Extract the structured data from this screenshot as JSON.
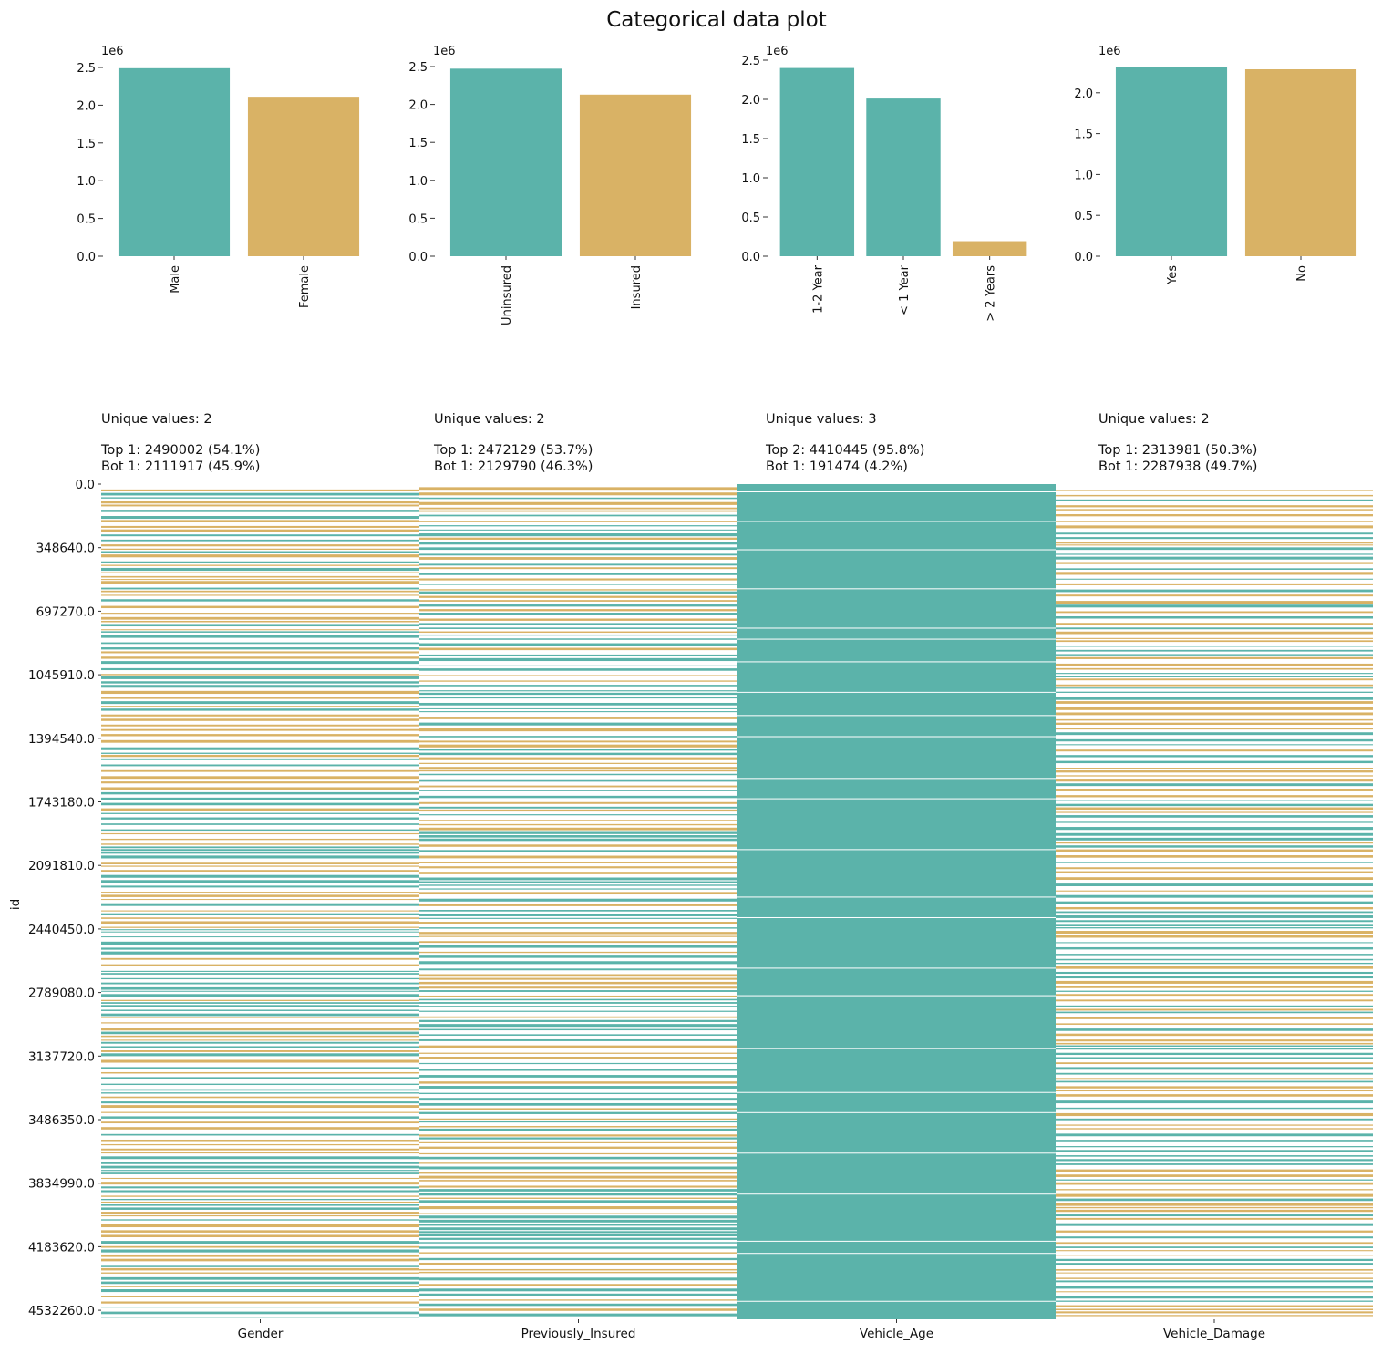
{
  "colors": {
    "teal": "#5bb3aa",
    "gold": "#d9b265",
    "background": "#ffffff"
  },
  "title": "Categorical data plot",
  "bar_exponent_label": "1e6",
  "chart_data": [
    {
      "type": "bar",
      "categories": [
        "Male",
        "Female"
      ],
      "values": [
        2490002,
        2111917
      ],
      "colors": [
        "#5bb3aa",
        "#d9b265"
      ],
      "ylim": [
        0,
        2500000
      ],
      "yticks": [
        "0.0",
        "0.5",
        "1.0",
        "1.5",
        "2.0",
        "2.5"
      ],
      "exponent": "1e6"
    },
    {
      "type": "bar",
      "categories": [
        "Uninsured",
        "Insured"
      ],
      "values": [
        2472129,
        2129790
      ],
      "colors": [
        "#5bb3aa",
        "#d9b265"
      ],
      "ylim": [
        0,
        2500000
      ],
      "yticks": [
        "0.0",
        "0.5",
        "1.0",
        "1.5",
        "2.0",
        "2.5"
      ],
      "exponent": "1e6"
    },
    {
      "type": "bar",
      "categories": [
        "1-2 Year",
        "< 1 Year",
        "> 2 Years"
      ],
      "values": [
        2400000,
        2010445,
        191474
      ],
      "colors": [
        "#5bb3aa",
        "#5bb3aa",
        "#d9b265"
      ],
      "ylim": [
        0,
        2500000
      ],
      "yticks": [
        "0.0",
        "0.5",
        "1.0",
        "1.5",
        "2.0",
        "2.5"
      ],
      "exponent": "1e6"
    },
    {
      "type": "bar",
      "categories": [
        "Yes",
        "No"
      ],
      "values": [
        2313981,
        2287938
      ],
      "colors": [
        "#5bb3aa",
        "#d9b265"
      ],
      "ylim": [
        0,
        2400000
      ],
      "yticks": [
        "0.0",
        "0.5",
        "1.0",
        "1.5",
        "2.0"
      ],
      "exponent": "1e6"
    },
    {
      "type": "heatmap",
      "columns": [
        "Gender",
        "Previously_Insured",
        "Vehicle_Age",
        "Vehicle_Damage"
      ],
      "ylabel": "id",
      "yticks": [
        "0.0",
        "348640.0",
        "697270.0",
        "1045910.0",
        "1394540.0",
        "1743180.0",
        "2091810.0",
        "2440450.0",
        "2789080.0",
        "3137720.0",
        "3486350.0",
        "3834990.0",
        "4183620.0",
        "4532260.0"
      ],
      "summaries": [
        {
          "unique": "Unique values: 2",
          "top": "Top 1: 2490002 (54.1%)",
          "bot": "Bot 1: 2111917 (45.9%)"
        },
        {
          "unique": "Unique values: 2",
          "top": "Top 1: 2472129 (53.7%)",
          "bot": "Bot 1: 2129790 (46.3%)"
        },
        {
          "unique": "Unique values: 3",
          "top": "Top 2: 4410445 (95.8%)",
          "bot": "Bot 1: 191474 (4.2%)"
        },
        {
          "unique": "Unique values: 2",
          "top": "Top 1: 2313981 (50.3%)",
          "bot": "Bot 1: 2287938 (49.7%)"
        }
      ],
      "shares": [
        {
          "teal": 0.541,
          "gold": 0.459
        },
        {
          "teal": 0.537,
          "gold": 0.463
        },
        {
          "teal": 0.958,
          "gold": 0.042
        },
        {
          "teal": 0.503,
          "gold": 0.497
        }
      ]
    }
  ]
}
